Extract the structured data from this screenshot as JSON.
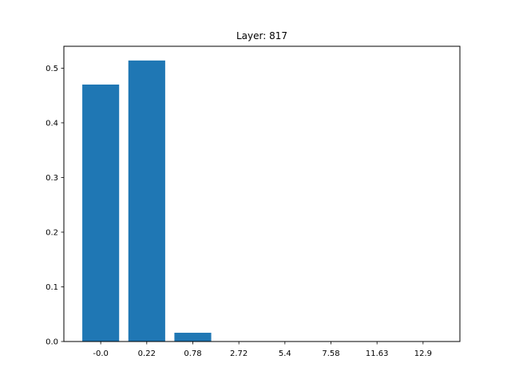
{
  "chart_data": {
    "type": "bar",
    "title": "Layer: 817",
    "xlabel": "",
    "ylabel": "",
    "categories": [
      "-0.0",
      "0.22",
      "0.78",
      "2.72",
      "5.4",
      "7.58",
      "11.63",
      "12.9"
    ],
    "values": [
      0.47,
      0.514,
      0.016,
      0.0,
      0.0,
      0.0,
      0.0,
      0.0
    ],
    "ylim": [
      0,
      0.54
    ],
    "yticks": [
      "0.0",
      "0.1",
      "0.2",
      "0.3",
      "0.4",
      "0.5"
    ],
    "bar_color": "#1f77b4",
    "grid": false
  }
}
